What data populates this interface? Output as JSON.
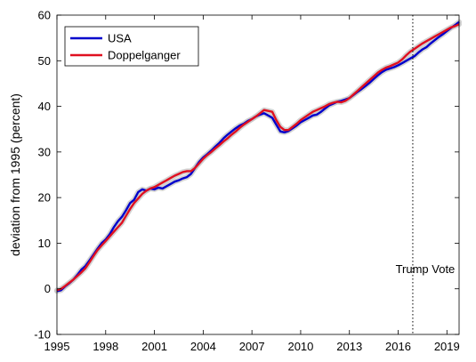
{
  "chart_data": {
    "type": "line",
    "ylabel": "deviation from 1995 (percent)",
    "xlabel": "",
    "xlim": [
      1995,
      2019.75
    ],
    "ylim": [
      -10,
      60
    ],
    "xticks": [
      1995,
      1998,
      2001,
      2004,
      2007,
      2010,
      2013,
      2016,
      2019
    ],
    "xtick_labels": [
      "1995",
      "1998",
      "2001",
      "2004",
      "2007",
      "2010",
      "2013",
      "2016",
      "2019"
    ],
    "yticks": [
      -10,
      0,
      10,
      20,
      30,
      40,
      50,
      60
    ],
    "ytick_labels": [
      "-10",
      "0",
      "10",
      "20",
      "30",
      "40",
      "50",
      "60"
    ],
    "grid": false,
    "legend": "top-left",
    "annotation": {
      "x": 2016.9,
      "label": "Trump Vote",
      "style": "dotted-vertical-line"
    },
    "series": [
      {
        "name": "USA",
        "color": "#0000cc",
        "x": [
          1995,
          1995.25,
          1995.5,
          1995.75,
          1996,
          1996.25,
          1996.5,
          1996.75,
          1997,
          1997.25,
          1997.5,
          1997.75,
          1998,
          1998.25,
          1998.5,
          1998.75,
          1999,
          1999.25,
          1999.5,
          1999.75,
          2000,
          2000.25,
          2000.5,
          2000.75,
          2001,
          2001.25,
          2001.5,
          2001.75,
          2002,
          2002.25,
          2002.5,
          2002.75,
          2003,
          2003.25,
          2003.5,
          2003.75,
          2004,
          2004.25,
          2004.5,
          2004.75,
          2005,
          2005.25,
          2005.5,
          2005.75,
          2006,
          2006.25,
          2006.5,
          2006.75,
          2007,
          2007.25,
          2007.5,
          2007.75,
          2008,
          2008.25,
          2008.5,
          2008.75,
          2009,
          2009.25,
          2009.5,
          2009.75,
          2010,
          2010.25,
          2010.5,
          2010.75,
          2011,
          2011.25,
          2011.5,
          2011.75,
          2012,
          2012.25,
          2012.5,
          2012.75,
          2013,
          2013.25,
          2013.5,
          2013.75,
          2014,
          2014.25,
          2014.5,
          2014.75,
          2015,
          2015.25,
          2015.5,
          2015.75,
          2016,
          2016.25,
          2016.5,
          2016.75,
          2017,
          2017.25,
          2017.5,
          2017.75,
          2018,
          2018.25,
          2018.5,
          2018.75,
          2019,
          2019.25,
          2019.5,
          2019.75
        ],
        "values": [
          -0.5,
          -0.3,
          0.5,
          1.2,
          2.0,
          3.0,
          4.2,
          5.0,
          6.2,
          7.5,
          8.8,
          10.0,
          10.8,
          12.0,
          13.5,
          14.8,
          15.8,
          17.2,
          18.8,
          19.5,
          21.2,
          21.8,
          21.5,
          22.0,
          21.8,
          22.2,
          22.0,
          22.5,
          23.0,
          23.5,
          23.8,
          24.2,
          24.5,
          25.2,
          26.5,
          27.8,
          28.8,
          29.5,
          30.3,
          31.2,
          32.0,
          33.0,
          33.8,
          34.5,
          35.2,
          35.8,
          36.2,
          36.8,
          37.2,
          37.8,
          38.2,
          38.5,
          38.0,
          37.5,
          36.0,
          34.5,
          34.3,
          34.6,
          35.2,
          35.8,
          36.5,
          37.0,
          37.5,
          38.0,
          38.2,
          38.8,
          39.5,
          40.2,
          40.6,
          41.0,
          41.2,
          41.5,
          41.8,
          42.5,
          43.2,
          43.8,
          44.5,
          45.2,
          46.0,
          46.8,
          47.5,
          48.0,
          48.3,
          48.6,
          49.0,
          49.5,
          50.0,
          50.5,
          51.0,
          51.8,
          52.5,
          53.0,
          53.8,
          54.5,
          55.2,
          55.8,
          56.5,
          57.2,
          57.8,
          58.5
        ]
      },
      {
        "name": "Doppelganger",
        "color": "#e01020",
        "x": [
          1995,
          1995.25,
          1995.5,
          1995.75,
          1996,
          1996.25,
          1996.5,
          1996.75,
          1997,
          1997.25,
          1997.5,
          1997.75,
          1998,
          1998.25,
          1998.5,
          1998.75,
          1999,
          1999.25,
          1999.5,
          1999.75,
          2000,
          2000.25,
          2000.5,
          2000.75,
          2001,
          2001.25,
          2001.5,
          2001.75,
          2002,
          2002.25,
          2002.5,
          2002.75,
          2003,
          2003.25,
          2003.5,
          2003.75,
          2004,
          2004.25,
          2004.5,
          2004.75,
          2005,
          2005.25,
          2005.5,
          2005.75,
          2006,
          2006.25,
          2006.5,
          2006.75,
          2007,
          2007.25,
          2007.5,
          2007.75,
          2008,
          2008.25,
          2008.5,
          2008.75,
          2009,
          2009.25,
          2009.5,
          2009.75,
          2010,
          2010.25,
          2010.5,
          2010.75,
          2011,
          2011.25,
          2011.5,
          2011.75,
          2012,
          2012.25,
          2012.5,
          2012.75,
          2013,
          2013.25,
          2013.5,
          2013.75,
          2014,
          2014.25,
          2014.5,
          2014.75,
          2015,
          2015.25,
          2015.5,
          2015.75,
          2016,
          2016.25,
          2016.5,
          2016.75,
          2017,
          2017.25,
          2017.5,
          2017.75,
          2018,
          2018.25,
          2018.5,
          2018.75,
          2019,
          2019.25,
          2019.5,
          2019.75
        ],
        "values": [
          -0.3,
          0.0,
          0.6,
          1.3,
          2.0,
          2.8,
          3.6,
          4.5,
          5.8,
          7.2,
          8.5,
          9.5,
          10.5,
          11.5,
          12.5,
          13.5,
          14.5,
          16.0,
          17.5,
          18.8,
          19.8,
          20.8,
          21.5,
          22.0,
          22.3,
          22.8,
          23.3,
          23.8,
          24.3,
          24.8,
          25.2,
          25.6,
          25.8,
          25.8,
          26.5,
          27.5,
          28.5,
          29.3,
          30.0,
          30.8,
          31.5,
          32.3,
          33.0,
          33.8,
          34.5,
          35.3,
          36.0,
          36.6,
          37.2,
          37.8,
          38.5,
          39.2,
          39.0,
          38.8,
          37.0,
          35.5,
          34.8,
          34.8,
          35.5,
          36.2,
          37.0,
          37.6,
          38.2,
          38.8,
          39.2,
          39.6,
          40.0,
          40.5,
          40.8,
          41.0,
          40.9,
          41.2,
          41.8,
          42.6,
          43.4,
          44.2,
          45.0,
          45.8,
          46.6,
          47.4,
          48.0,
          48.5,
          48.8,
          49.2,
          49.6,
          50.3,
          51.2,
          52.0,
          52.6,
          53.2,
          53.8,
          54.3,
          54.8,
          55.3,
          55.8,
          56.3,
          56.8,
          57.3,
          57.6,
          58.0
        ]
      }
    ]
  }
}
